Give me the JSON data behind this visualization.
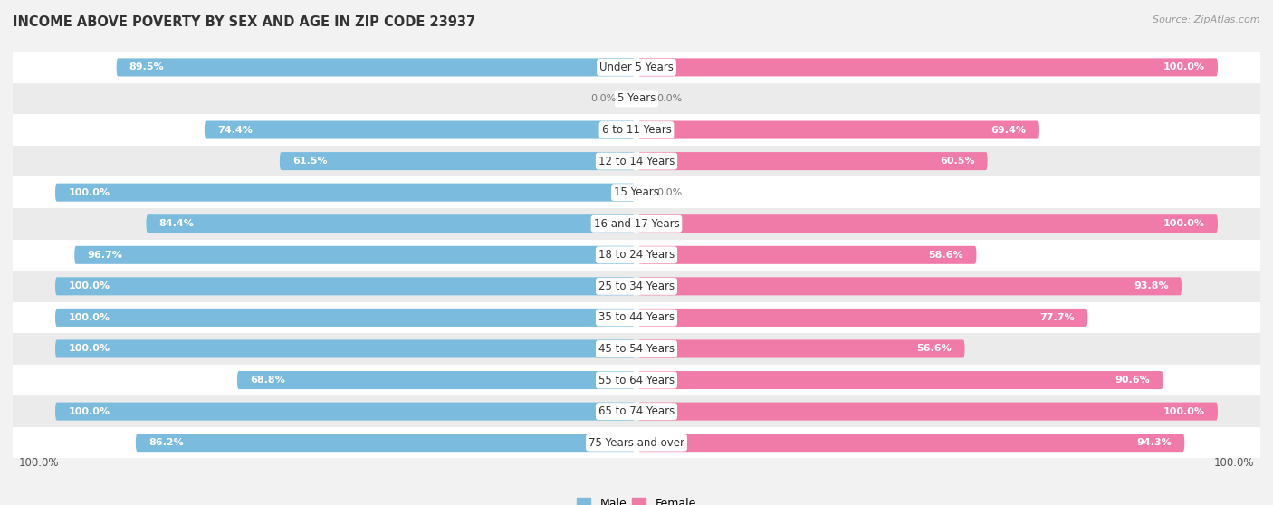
{
  "title": "INCOME ABOVE POVERTY BY SEX AND AGE IN ZIP CODE 23937",
  "source": "Source: ZipAtlas.com",
  "categories": [
    "Under 5 Years",
    "5 Years",
    "6 to 11 Years",
    "12 to 14 Years",
    "15 Years",
    "16 and 17 Years",
    "18 to 24 Years",
    "25 to 34 Years",
    "35 to 44 Years",
    "45 to 54 Years",
    "55 to 64 Years",
    "65 to 74 Years",
    "75 Years and over"
  ],
  "male_values": [
    89.5,
    0.0,
    74.4,
    61.5,
    100.0,
    84.4,
    96.7,
    100.0,
    100.0,
    100.0,
    68.8,
    100.0,
    86.2
  ],
  "female_values": [
    100.0,
    0.0,
    69.4,
    60.5,
    0.0,
    100.0,
    58.6,
    93.8,
    77.7,
    56.6,
    90.6,
    100.0,
    94.3
  ],
  "male_color": "#7bbcde",
  "female_color": "#f07aa8",
  "male_color_light": "#c6dcef",
  "female_color_light": "#f9c8da",
  "row_color_odd": "#f5f5f5",
  "row_color_even": "#e8e8e8",
  "background_color": "#f2f2f2",
  "title_fontsize": 10.5,
  "label_fontsize": 8.5,
  "value_fontsize": 8.0,
  "bar_height": 0.58,
  "xlim": 107
}
